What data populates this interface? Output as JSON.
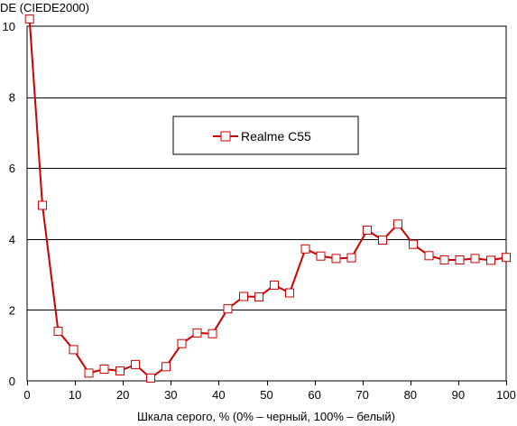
{
  "chart_data": {
    "type": "line",
    "title": "",
    "ylabel": "DE (CIEDE2000)",
    "xlabel": "Шкала серого, % (0% – черный, 100% – белый)",
    "xlim": [
      0,
      100
    ],
    "ylim": [
      0,
      10
    ],
    "xticks": [
      0,
      10,
      20,
      30,
      40,
      50,
      60,
      70,
      80,
      90,
      100
    ],
    "yticks": [
      0,
      2,
      4,
      6,
      8,
      10
    ],
    "grid": "horizontal",
    "legend_position": "center",
    "series": [
      {
        "name": "Realme C55",
        "color": "#cc0000",
        "marker": "open-square",
        "points": [
          [
            0.5,
            10.2
          ],
          [
            3.2,
            4.95
          ],
          [
            6.5,
            1.4
          ],
          [
            9.7,
            0.88
          ],
          [
            12.9,
            0.22
          ],
          [
            16.1,
            0.33
          ],
          [
            19.4,
            0.28
          ],
          [
            22.6,
            0.46
          ],
          [
            25.8,
            0.08
          ],
          [
            29.0,
            0.4
          ],
          [
            32.3,
            1.05
          ],
          [
            35.5,
            1.35
          ],
          [
            38.7,
            1.33
          ],
          [
            41.9,
            2.03
          ],
          [
            45.2,
            2.38
          ],
          [
            48.4,
            2.37
          ],
          [
            51.6,
            2.7
          ],
          [
            54.8,
            2.48
          ],
          [
            58.1,
            3.72
          ],
          [
            61.3,
            3.52
          ],
          [
            64.5,
            3.45
          ],
          [
            67.7,
            3.47
          ],
          [
            71.0,
            4.25
          ],
          [
            74.2,
            3.97
          ],
          [
            77.4,
            4.42
          ],
          [
            80.6,
            3.85
          ],
          [
            83.9,
            3.53
          ],
          [
            87.1,
            3.41
          ],
          [
            90.3,
            3.41
          ],
          [
            93.5,
            3.45
          ],
          [
            96.8,
            3.4
          ],
          [
            100.0,
            3.48
          ]
        ]
      }
    ]
  },
  "colors": {
    "series": "#cc0000",
    "grid": "#000000",
    "background": "#ffffff"
  }
}
